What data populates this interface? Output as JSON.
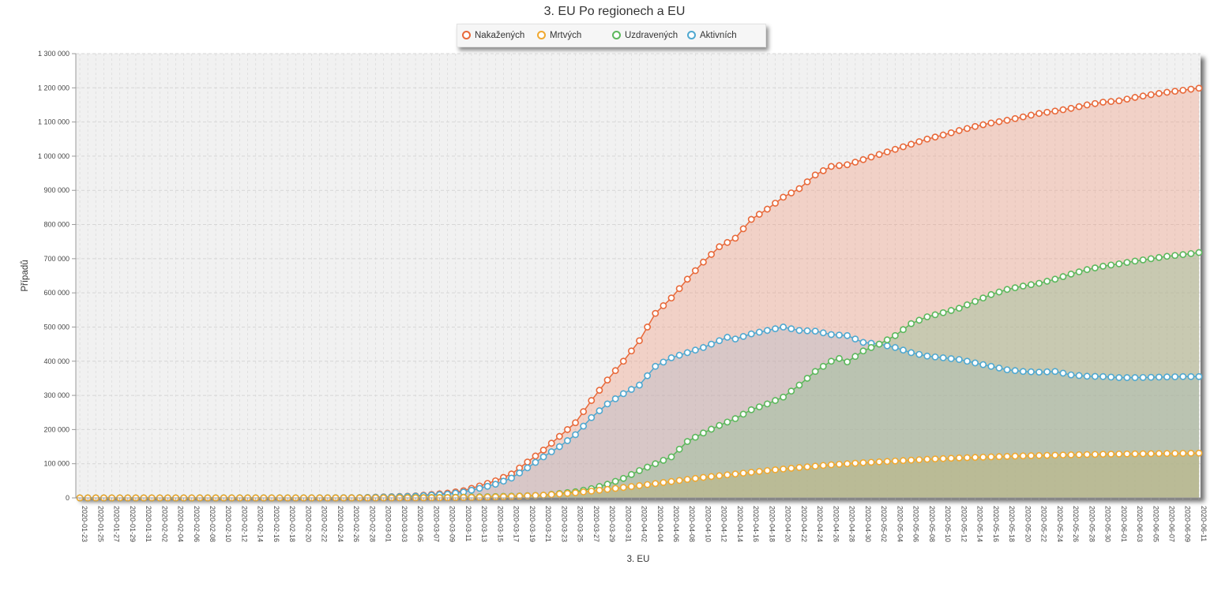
{
  "chart_data": {
    "type": "area",
    "title": "3. EU Po regionech a EU",
    "xlabel": "3. EU",
    "ylabel": "Případů",
    "ylim": [
      0,
      1300000
    ],
    "yticks": [
      "0",
      "100 000",
      "200 000",
      "300 000",
      "400 000",
      "500 000",
      "600 000",
      "700 000",
      "800 000",
      "900 000",
      "1 000 000",
      "1 100 000",
      "1 200 000",
      "1 300 000"
    ],
    "ytick_values": [
      0,
      100000,
      200000,
      300000,
      400000,
      500000,
      600000,
      700000,
      800000,
      900000,
      1000000,
      1100000,
      1200000,
      1300000
    ],
    "x_start": "2020-01-23",
    "x_end": "2020-06-11",
    "x_tick_labels": [
      "2020-01-23",
      "2020-01-25",
      "2020-01-27",
      "2020-01-29",
      "2020-01-31",
      "2020-02-02",
      "2020-02-04",
      "2020-02-06",
      "2020-02-08",
      "2020-02-10",
      "2020-02-12",
      "2020-02-14",
      "2020-02-16",
      "2020-02-18",
      "2020-02-20",
      "2020-02-22",
      "2020-02-24",
      "2020-02-26",
      "2020-02-28",
      "2020-03-01",
      "2020-03-03",
      "2020-03-05",
      "2020-03-07",
      "2020-03-09",
      "2020-03-11",
      "2020-03-13",
      "2020-03-15",
      "2020-03-17",
      "2020-03-19",
      "2020-03-21",
      "2020-03-23",
      "2020-03-25",
      "2020-03-27",
      "2020-03-29",
      "2020-03-31",
      "2020-04-02",
      "2020-04-04",
      "2020-04-06",
      "2020-04-08",
      "2020-04-10",
      "2020-04-12",
      "2020-04-14",
      "2020-04-16",
      "2020-04-18",
      "2020-04-20",
      "2020-04-22",
      "2020-04-24",
      "2020-04-26",
      "2020-04-28",
      "2020-04-30",
      "2020-05-02",
      "2020-05-04",
      "2020-05-06",
      "2020-05-08",
      "2020-05-10",
      "2020-05-12",
      "2020-05-14",
      "2020-05-16",
      "2020-05-18",
      "2020-05-20",
      "2020-05-22",
      "2020-05-24",
      "2020-05-26",
      "2020-05-28",
      "2020-05-30",
      "2020-06-01",
      "2020-06-03",
      "2020-06-05",
      "2020-06-07",
      "2020-06-09",
      "2020-06-11"
    ],
    "grid": true,
    "legend_position": "top-center",
    "series": [
      {
        "name": "Nakažených",
        "color": "#e8693a",
        "fill": "rgba(240,150,120,0.35)",
        "keyframes": [
          [
            "2020-01-23",
            0
          ],
          [
            "2020-02-20",
            50
          ],
          [
            "2020-02-27",
            800
          ],
          [
            "2020-03-01",
            3000
          ],
          [
            "2020-03-05",
            6000
          ],
          [
            "2020-03-09",
            14000
          ],
          [
            "2020-03-11",
            21000
          ],
          [
            "2020-03-13",
            35000
          ],
          [
            "2020-03-15",
            50000
          ],
          [
            "2020-03-17",
            70000
          ],
          [
            "2020-03-19",
            105000
          ],
          [
            "2020-03-21",
            140000
          ],
          [
            "2020-03-23",
            180000
          ],
          [
            "2020-03-25",
            220000
          ],
          [
            "2020-03-27",
            285000
          ],
          [
            "2020-03-29",
            345000
          ],
          [
            "2020-03-31",
            400000
          ],
          [
            "2020-04-02",
            460000
          ],
          [
            "2020-04-04",
            540000
          ],
          [
            "2020-04-06",
            585000
          ],
          [
            "2020-04-08",
            640000
          ],
          [
            "2020-04-10",
            690000
          ],
          [
            "2020-04-12",
            735000
          ],
          [
            "2020-04-14",
            760000
          ],
          [
            "2020-04-16",
            815000
          ],
          [
            "2020-04-18",
            845000
          ],
          [
            "2020-04-20",
            880000
          ],
          [
            "2020-04-22",
            905000
          ],
          [
            "2020-04-24",
            945000
          ],
          [
            "2020-04-26",
            970000
          ],
          [
            "2020-04-28",
            975000
          ],
          [
            "2020-04-30",
            990000
          ],
          [
            "2020-05-02",
            1005000
          ],
          [
            "2020-05-04",
            1020000
          ],
          [
            "2020-05-06",
            1035000
          ],
          [
            "2020-05-08",
            1050000
          ],
          [
            "2020-05-10",
            1062000
          ],
          [
            "2020-05-12",
            1075000
          ],
          [
            "2020-05-14",
            1087000
          ],
          [
            "2020-05-16",
            1097000
          ],
          [
            "2020-05-18",
            1105000
          ],
          [
            "2020-05-20",
            1115000
          ],
          [
            "2020-05-22",
            1125000
          ],
          [
            "2020-05-24",
            1132000
          ],
          [
            "2020-05-26",
            1140000
          ],
          [
            "2020-05-28",
            1150000
          ],
          [
            "2020-05-30",
            1158000
          ],
          [
            "2020-06-01",
            1162000
          ],
          [
            "2020-06-03",
            1172000
          ],
          [
            "2020-06-05",
            1180000
          ],
          [
            "2020-06-07",
            1187000
          ],
          [
            "2020-06-09",
            1193000
          ],
          [
            "2020-06-11",
            1199000
          ]
        ]
      },
      {
        "name": "Mrtvých",
        "color": "#f0a830",
        "fill": "rgba(185,170,90,0.30)",
        "keyframes": [
          [
            "2020-01-23",
            0
          ],
          [
            "2020-02-28",
            30
          ],
          [
            "2020-03-05",
            300
          ],
          [
            "2020-03-09",
            700
          ],
          [
            "2020-03-13",
            1800
          ],
          [
            "2020-03-17",
            4000
          ],
          [
            "2020-03-21",
            8000
          ],
          [
            "2020-03-25",
            15000
          ],
          [
            "2020-03-29",
            25000
          ],
          [
            "2020-04-02",
            36000
          ],
          [
            "2020-04-06",
            48000
          ],
          [
            "2020-04-10",
            60000
          ],
          [
            "2020-04-14",
            70000
          ],
          [
            "2020-04-18",
            80000
          ],
          [
            "2020-04-22",
            89000
          ],
          [
            "2020-04-26",
            97000
          ],
          [
            "2020-04-30",
            103000
          ],
          [
            "2020-05-04",
            108000
          ],
          [
            "2020-05-08",
            113000
          ],
          [
            "2020-05-12",
            117000
          ],
          [
            "2020-05-16",
            120000
          ],
          [
            "2020-05-20",
            123000
          ],
          [
            "2020-05-24",
            125000
          ],
          [
            "2020-05-28",
            127000
          ],
          [
            "2020-06-01",
            128500
          ],
          [
            "2020-06-05",
            129500
          ],
          [
            "2020-06-11",
            131000
          ]
        ]
      },
      {
        "name": "Uzdravených",
        "color": "#5cb85c",
        "fill": "rgba(150,190,150,0.45)",
        "keyframes": [
          [
            "2020-01-23",
            0
          ],
          [
            "2020-02-28",
            200
          ],
          [
            "2020-03-09",
            1500
          ],
          [
            "2020-03-13",
            3000
          ],
          [
            "2020-03-17",
            5000
          ],
          [
            "2020-03-21",
            8000
          ],
          [
            "2020-03-25",
            18000
          ],
          [
            "2020-03-27",
            27000
          ],
          [
            "2020-03-29",
            40000
          ],
          [
            "2020-03-31",
            57000
          ],
          [
            "2020-04-02",
            80000
          ],
          [
            "2020-04-04",
            100000
          ],
          [
            "2020-04-06",
            120000
          ],
          [
            "2020-04-08",
            165000
          ],
          [
            "2020-04-10",
            190000
          ],
          [
            "2020-04-12",
            212000
          ],
          [
            "2020-04-14",
            232000
          ],
          [
            "2020-04-16",
            258000
          ],
          [
            "2020-04-18",
            275000
          ],
          [
            "2020-04-20",
            295000
          ],
          [
            "2020-04-22",
            330000
          ],
          [
            "2020-04-24",
            370000
          ],
          [
            "2020-04-26",
            400000
          ],
          [
            "2020-04-27",
            408000
          ],
          [
            "2020-04-28",
            398000
          ],
          [
            "2020-04-30",
            430000
          ],
          [
            "2020-05-02",
            450000
          ],
          [
            "2020-05-04",
            475000
          ],
          [
            "2020-05-06",
            510000
          ],
          [
            "2020-05-08",
            530000
          ],
          [
            "2020-05-10",
            542000
          ],
          [
            "2020-05-12",
            555000
          ],
          [
            "2020-05-14",
            575000
          ],
          [
            "2020-05-16",
            595000
          ],
          [
            "2020-05-18",
            610000
          ],
          [
            "2020-05-20",
            620000
          ],
          [
            "2020-05-22",
            628000
          ],
          [
            "2020-05-24",
            640000
          ],
          [
            "2020-05-26",
            655000
          ],
          [
            "2020-05-28",
            668000
          ],
          [
            "2020-05-30",
            678000
          ],
          [
            "2020-06-01",
            685000
          ],
          [
            "2020-06-03",
            693000
          ],
          [
            "2020-06-05",
            700000
          ],
          [
            "2020-06-07",
            707000
          ],
          [
            "2020-06-09",
            712000
          ],
          [
            "2020-06-11",
            718000
          ]
        ]
      },
      {
        "name": "Aktivních",
        "color": "#4fa8d0",
        "fill": "rgba(170,180,200,0.35)",
        "keyframes": [
          [
            "2020-01-23",
            0
          ],
          [
            "2020-02-20",
            50
          ],
          [
            "2020-02-27",
            700
          ],
          [
            "2020-03-01",
            2500
          ],
          [
            "2020-03-05",
            5000
          ],
          [
            "2020-03-09",
            11000
          ],
          [
            "2020-03-11",
            17000
          ],
          [
            "2020-03-13",
            28000
          ],
          [
            "2020-03-15",
            40000
          ],
          [
            "2020-03-17",
            58000
          ],
          [
            "2020-03-19",
            88000
          ],
          [
            "2020-03-21",
            120000
          ],
          [
            "2020-03-23",
            150000
          ],
          [
            "2020-03-25",
            185000
          ],
          [
            "2020-03-27",
            235000
          ],
          [
            "2020-03-29",
            275000
          ],
          [
            "2020-03-31",
            305000
          ],
          [
            "2020-04-02",
            330000
          ],
          [
            "2020-04-04",
            385000
          ],
          [
            "2020-04-06",
            410000
          ],
          [
            "2020-04-08",
            425000
          ],
          [
            "2020-04-10",
            440000
          ],
          [
            "2020-04-12",
            460000
          ],
          [
            "2020-04-13",
            470000
          ],
          [
            "2020-04-14",
            465000
          ],
          [
            "2020-04-16",
            480000
          ],
          [
            "2020-04-18",
            490000
          ],
          [
            "2020-04-20",
            500000
          ],
          [
            "2020-04-22",
            490000
          ],
          [
            "2020-04-24",
            488000
          ],
          [
            "2020-04-26",
            478000
          ],
          [
            "2020-04-28",
            475000
          ],
          [
            "2020-04-30",
            455000
          ],
          [
            "2020-05-02",
            450000
          ],
          [
            "2020-05-04",
            440000
          ],
          [
            "2020-05-06",
            425000
          ],
          [
            "2020-05-08",
            415000
          ],
          [
            "2020-05-10",
            410000
          ],
          [
            "2020-05-12",
            405000
          ],
          [
            "2020-05-14",
            395000
          ],
          [
            "2020-05-16",
            385000
          ],
          [
            "2020-05-18",
            375000
          ],
          [
            "2020-05-20",
            370000
          ],
          [
            "2020-05-22",
            368000
          ],
          [
            "2020-05-24",
            370000
          ],
          [
            "2020-05-26",
            360000
          ],
          [
            "2020-05-28",
            356000
          ],
          [
            "2020-05-30",
            355000
          ],
          [
            "2020-06-01",
            352000
          ],
          [
            "2020-06-03",
            352000
          ],
          [
            "2020-06-05",
            353000
          ],
          [
            "2020-06-07",
            354000
          ],
          [
            "2020-06-09",
            355000
          ],
          [
            "2020-06-11",
            355000
          ]
        ]
      }
    ]
  }
}
